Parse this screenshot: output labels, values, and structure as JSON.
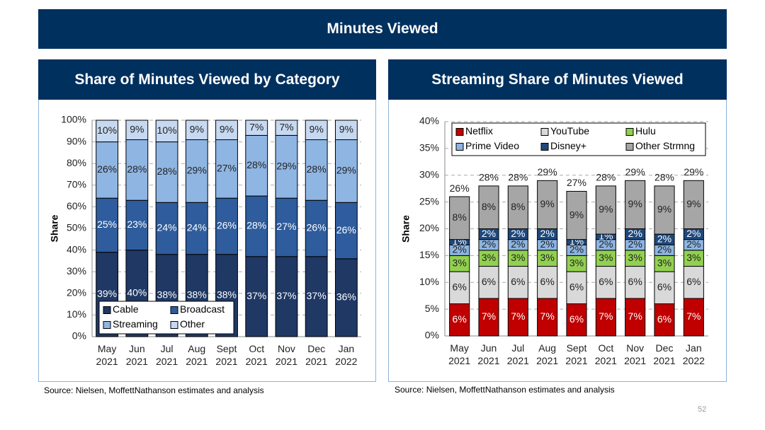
{
  "header": {
    "title": "Minutes Viewed"
  },
  "chart_data": [
    {
      "type": "stacked_bar",
      "title": "Share of Minutes Viewed by Category",
      "ylabel": "Share",
      "categories": [
        "May 2021",
        "Jun 2021",
        "Jul 2021",
        "Aug 2021",
        "Sept 2021",
        "Oct 2021",
        "Nov 2021",
        "Dec 2021",
        "Jan 2022"
      ],
      "series": [
        {
          "name": "Cable",
          "color": "#1f3864",
          "values": [
            39,
            40,
            38,
            38,
            38,
            37,
            37,
            37,
            36
          ],
          "value_labels": [
            "39%",
            "40%",
            "38%",
            "38%",
            "38%",
            "37%",
            "37%",
            "37%",
            "36%"
          ]
        },
        {
          "name": "Broadcast",
          "color": "#2e5c9c",
          "values": [
            25,
            23,
            24,
            24,
            26,
            28,
            27,
            26,
            26
          ],
          "value_labels": [
            "25%",
            "23%",
            "24%",
            "24%",
            "26%",
            "28%",
            "27%",
            "26%",
            "26%"
          ]
        },
        {
          "name": "Streaming",
          "color": "#8fb5e3",
          "values": [
            26,
            28,
            28,
            29,
            27,
            28,
            29,
            28,
            29
          ],
          "value_labels": [
            "26%",
            "28%",
            "28%",
            "29%",
            "27%",
            "28%",
            "29%",
            "28%",
            "29%"
          ]
        },
        {
          "name": "Other",
          "color": "#c6d9f1",
          "values": [
            10,
            9,
            10,
            9,
            9,
            7,
            7,
            9,
            9
          ],
          "value_labels": [
            "10%",
            "9%",
            "10%",
            "9%",
            "9%",
            "7%",
            "7%",
            "9%",
            "9%"
          ]
        }
      ],
      "ylim": [
        0,
        100
      ],
      "yticks": [
        {
          "value": 0,
          "label": "0%"
        },
        {
          "value": 10,
          "label": "10%"
        },
        {
          "value": 20,
          "label": "20%"
        },
        {
          "value": 30,
          "label": "30%"
        },
        {
          "value": 40,
          "label": "40%"
        },
        {
          "value": 50,
          "label": "50%"
        },
        {
          "value": 60,
          "label": "60%"
        },
        {
          "value": 70,
          "label": "70%"
        },
        {
          "value": 80,
          "label": "80%"
        },
        {
          "value": 90,
          "label": "90%"
        },
        {
          "value": 100,
          "label": "100%"
        }
      ],
      "grid": true,
      "legend": "lower left"
    },
    {
      "type": "stacked_bar",
      "title": "Streaming Share of Minutes Viewed",
      "ylabel": "Share",
      "categories": [
        "May 2021",
        "Jun 2021",
        "Jul 2021",
        "Aug 2021",
        "Sept 2021",
        "Oct 2021",
        "Nov 2021",
        "Dec 2021",
        "Jan 2022"
      ],
      "series": [
        {
          "name": "Netflix",
          "color": "#c00000",
          "values": [
            6,
            7,
            7,
            7,
            6,
            7,
            7,
            6,
            7
          ],
          "value_labels": [
            "6%",
            "7%",
            "7%",
            "7%",
            "6%",
            "7%",
            "7%",
            "6%",
            "7%"
          ]
        },
        {
          "name": "YouTube",
          "color": "#d9d9d9",
          "values": [
            6,
            6,
            6,
            6,
            6,
            6,
            6,
            6,
            6
          ],
          "value_labels": [
            "6%",
            "6%",
            "6%",
            "6%",
            "6%",
            "6%",
            "6%",
            "6%",
            "6%"
          ]
        },
        {
          "name": "Hulu",
          "color": "#92d050",
          "values": [
            3,
            3,
            3,
            3,
            3,
            3,
            3,
            3,
            3
          ],
          "value_labels": [
            "3%",
            "3%",
            "3%",
            "3%",
            "3%",
            "3%",
            "3%",
            "3%",
            "3%"
          ]
        },
        {
          "name": "Prime Video",
          "color": "#8db4e2",
          "values": [
            2,
            2,
            2,
            2,
            2,
            2,
            2,
            2,
            2
          ],
          "value_labels": [
            "2%",
            "2%",
            "2%",
            "2%",
            "2%",
            "2%",
            "2%",
            "2%",
            "2%"
          ]
        },
        {
          "name": "Disney+",
          "color": "#1f497d",
          "values": [
            1,
            2,
            2,
            2,
            1,
            1,
            2,
            2,
            2
          ],
          "value_labels": [
            "1%",
            "2%",
            "2%",
            "2%",
            "1%",
            "1%",
            "2%",
            "2%",
            "2%"
          ]
        },
        {
          "name": "Other Strmng",
          "color": "#a6a6a6",
          "values": [
            8,
            8,
            8,
            9,
            9,
            9,
            9,
            9,
            9
          ],
          "value_labels": [
            "8%",
            "8%",
            "8%",
            "9%",
            "9%",
            "9%",
            "9%",
            "9%",
            "9%"
          ]
        }
      ],
      "totals": [
        26,
        28,
        28,
        29,
        27,
        28,
        29,
        28,
        29
      ],
      "total_labels": [
        "26%",
        "28%",
        "28%",
        "29%",
        "27%",
        "28%",
        "29%",
        "28%",
        "29%"
      ],
      "ylim": [
        0,
        40
      ],
      "yticks": [
        {
          "value": 0,
          "label": "0%"
        },
        {
          "value": 5,
          "label": "5%"
        },
        {
          "value": 10,
          "label": "10%"
        },
        {
          "value": 15,
          "label": "15%"
        },
        {
          "value": 20,
          "label": "20%"
        },
        {
          "value": 25,
          "label": "25%"
        },
        {
          "value": 30,
          "label": "30%"
        },
        {
          "value": 35,
          "label": "35%"
        },
        {
          "value": 40,
          "label": "40%"
        }
      ],
      "grid": true,
      "legend": "upper left"
    }
  ],
  "sources": [
    "Source: Nielsen, MoffettNathanson estimates and analysis",
    "Source: Nielsen, MoffettNathanson estimates and analysis"
  ],
  "page_number": "52"
}
